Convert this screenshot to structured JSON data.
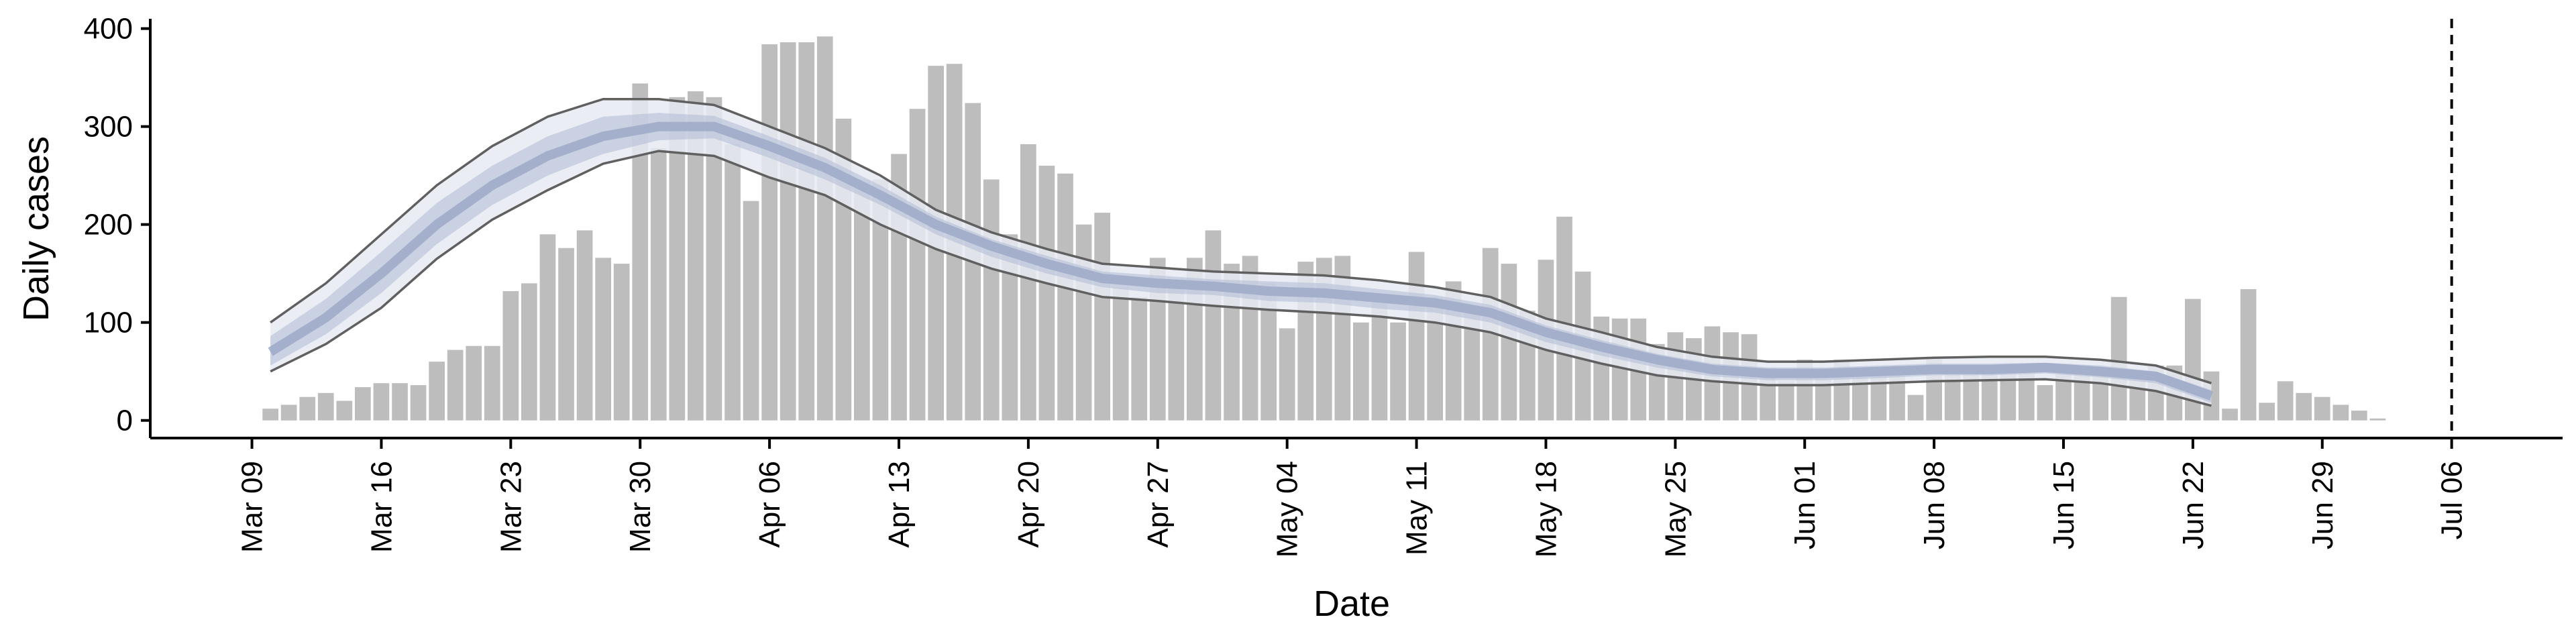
{
  "chart_data": {
    "type": "bar",
    "title": "",
    "xlabel": "Date",
    "ylabel": "Daily cases",
    "ylim": [
      -18,
      410
    ],
    "yticks": [
      0,
      100,
      200,
      300,
      400
    ],
    "x_start": "Mar 10",
    "x_ticks": [
      {
        "day": -1,
        "label": "Mar 09"
      },
      {
        "day": 6,
        "label": "Mar 16"
      },
      {
        "day": 13,
        "label": "Mar 23"
      },
      {
        "day": 20,
        "label": "Mar 30"
      },
      {
        "day": 27,
        "label": "Apr 06"
      },
      {
        "day": 34,
        "label": "Apr 13"
      },
      {
        "day": 41,
        "label": "Apr 20"
      },
      {
        "day": 48,
        "label": "Apr 27"
      },
      {
        "day": 55,
        "label": "May 04"
      },
      {
        "day": 62,
        "label": "May 11"
      },
      {
        "day": 69,
        "label": "May 18"
      },
      {
        "day": 76,
        "label": "May 25"
      },
      {
        "day": 83,
        "label": "Jun 01"
      },
      {
        "day": 90,
        "label": "Jun 08"
      },
      {
        "day": 97,
        "label": "Jun 15"
      },
      {
        "day": 104,
        "label": "Jun 22"
      },
      {
        "day": 111,
        "label": "Jun 29"
      },
      {
        "day": 118,
        "label": "Jul 06"
      }
    ],
    "cutoff_day": 118,
    "xlim_days": [
      -6.5,
      124
    ],
    "daily_cases": [
      12,
      16,
      24,
      28,
      20,
      34,
      38,
      38,
      36,
      60,
      72,
      76,
      76,
      132,
      140,
      190,
      176,
      194,
      166,
      160,
      344,
      278,
      330,
      336,
      330,
      282,
      224,
      384,
      386,
      386,
      392,
      308,
      246,
      246,
      272,
      318,
      362,
      364,
      324,
      246,
      190,
      282,
      260,
      252,
      200,
      212,
      136,
      126,
      166,
      144,
      166,
      194,
      160,
      168,
      140,
      94,
      162,
      166,
      168,
      100,
      124,
      100,
      172,
      126,
      142,
      112,
      176,
      160,
      112,
      164,
      208,
      152,
      106,
      104,
      104,
      78,
      90,
      84,
      96,
      90,
      88,
      54,
      40,
      62,
      42,
      62,
      50,
      52,
      46,
      26,
      64,
      52,
      52,
      48,
      58,
      56,
      36,
      58,
      48,
      50,
      126,
      44,
      56,
      56,
      124,
      50,
      12,
      134,
      18,
      40,
      28,
      24,
      16,
      10,
      2
    ],
    "model_days": [
      0,
      3,
      6,
      9,
      12,
      15,
      18,
      21,
      24,
      27,
      30,
      33,
      36,
      39,
      42,
      45,
      48,
      51,
      54,
      57,
      60,
      63,
      66,
      69,
      72,
      75,
      78,
      81,
      84,
      87,
      90,
      93,
      96,
      99,
      102,
      105
    ],
    "model_median": [
      70,
      105,
      150,
      200,
      240,
      270,
      290,
      300,
      300,
      280,
      258,
      230,
      200,
      178,
      160,
      145,
      140,
      137,
      132,
      130,
      125,
      120,
      110,
      90,
      75,
      62,
      52,
      48,
      48,
      50,
      52,
      52,
      54,
      50,
      45,
      25
    ],
    "outer_upper": [
      100,
      140,
      190,
      240,
      280,
      310,
      328,
      328,
      322,
      300,
      278,
      250,
      215,
      192,
      175,
      160,
      156,
      152,
      150,
      148,
      143,
      136,
      126,
      104,
      90,
      75,
      65,
      60,
      60,
      62,
      64,
      65,
      65,
      62,
      56,
      38
    ],
    "outer_lower": [
      50,
      78,
      115,
      165,
      205,
      235,
      262,
      275,
      270,
      248,
      230,
      200,
      175,
      155,
      140,
      126,
      122,
      117,
      113,
      110,
      106,
      100,
      90,
      72,
      58,
      46,
      40,
      36,
      36,
      38,
      40,
      41,
      42,
      38,
      30,
      15
    ],
    "inner_upper": [
      86,
      124,
      172,
      222,
      260,
      290,
      310,
      314,
      311,
      290,
      268,
      240,
      208,
      185,
      168,
      152,
      148,
      144,
      142,
      140,
      134,
      128,
      118,
      97,
      82,
      68,
      58,
      54,
      54,
      56,
      58,
      58,
      59,
      56,
      50,
      31
    ],
    "inner_lower": [
      56,
      88,
      130,
      180,
      220,
      250,
      272,
      286,
      288,
      268,
      246,
      220,
      190,
      167,
      150,
      136,
      130,
      128,
      122,
      120,
      114,
      110,
      100,
      80,
      66,
      54,
      45,
      41,
      41,
      43,
      46,
      46,
      48,
      44,
      38,
      18
    ],
    "colors": {
      "bars": "#bdbdbd",
      "outer_band": "#e8eaf2",
      "inner_band": "#b4bed6",
      "median": "#9aa8c6",
      "band_edge": "#606060",
      "axis": "#000000",
      "cutoff": "#000000"
    }
  }
}
